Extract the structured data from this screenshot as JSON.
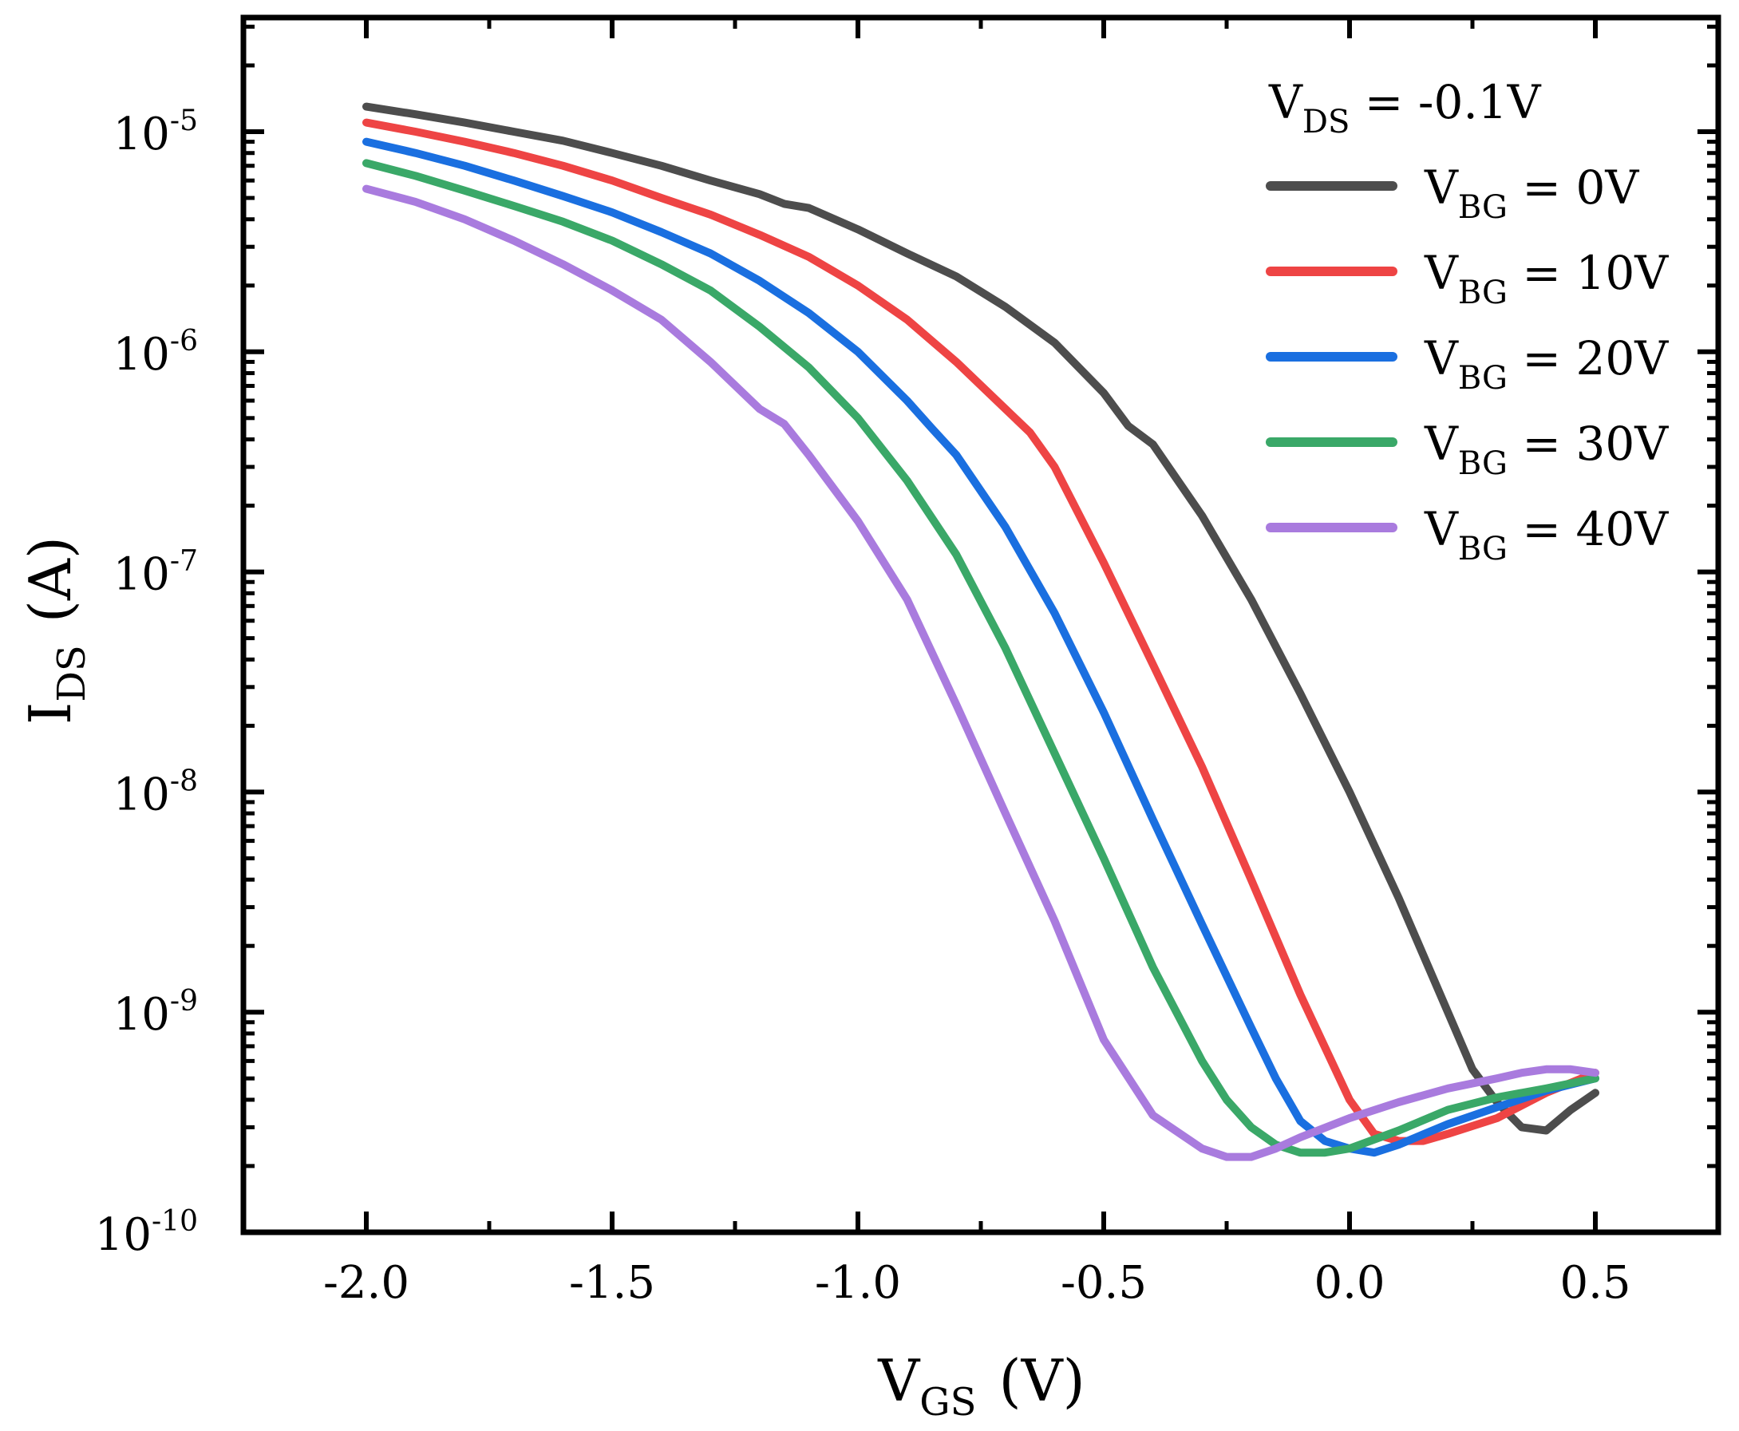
{
  "chart_data": {
    "type": "line",
    "x_scale": "linear",
    "y_scale": "log",
    "xlim": [
      -2.25,
      0.75
    ],
    "ylim": [
      1e-10,
      3.3e-05
    ],
    "x_ticks": [
      -2.0,
      -1.5,
      -1.0,
      -0.5,
      0.0,
      0.5
    ],
    "x_tick_labels": [
      "-2.0",
      "-1.5",
      "-1.0",
      "-0.5",
      "0.0",
      "0.5"
    ],
    "y_ticks": [
      {
        "value": 1e-05,
        "base": "10",
        "exp": "-5"
      },
      {
        "value": 1e-06,
        "base": "10",
        "exp": "-6"
      },
      {
        "value": 1e-07,
        "base": "10",
        "exp": "-7"
      },
      {
        "value": 1e-08,
        "base": "10",
        "exp": "-8"
      },
      {
        "value": 1e-09,
        "base": "10",
        "exp": "-9"
      },
      {
        "value": 1e-10,
        "base": "10",
        "exp": "-10"
      }
    ],
    "xlabel": {
      "main": "V",
      "sub": "GS",
      "unit": "(V)"
    },
    "ylabel": {
      "main": "I",
      "sub": "DS",
      "unit": "(A)"
    },
    "legend": {
      "title": {
        "main": "V",
        "sub": "DS",
        "rest": " = -0.1V"
      },
      "placement": "top-right"
    },
    "series": [
      {
        "name": "V_BG = 0V",
        "label_main": "V",
        "label_sub": "BG",
        "label_rest": " = 0V",
        "color": "#4d4d4d",
        "x": [
          -2.0,
          -1.9,
          -1.8,
          -1.7,
          -1.6,
          -1.5,
          -1.4,
          -1.3,
          -1.2,
          -1.15,
          -1.1,
          -1.0,
          -0.9,
          -0.8,
          -0.7,
          -0.6,
          -0.5,
          -0.45,
          -0.4,
          -0.3,
          -0.2,
          -0.1,
          0.0,
          0.1,
          0.2,
          0.25,
          0.3,
          0.35,
          0.4,
          0.45,
          0.5
        ],
        "y": [
          1.3e-05,
          1.2e-05,
          1.1e-05,
          1e-05,
          9.1e-06,
          8e-06,
          7e-06,
          6e-06,
          5.2e-06,
          4.7e-06,
          4.5e-06,
          3.6e-06,
          2.8e-06,
          2.2e-06,
          1.6e-06,
          1.1e-06,
          6.5e-07,
          4.6e-07,
          3.8e-07,
          1.8e-07,
          7.5e-08,
          2.8e-08,
          1e-08,
          3.3e-09,
          1e-09,
          5.5e-10,
          3.9e-10,
          3e-10,
          2.9e-10,
          3.6e-10,
          4.3e-10
        ]
      },
      {
        "name": "V_BG = 10V",
        "label_main": "V",
        "label_sub": "BG",
        "label_rest": " = 10V",
        "color": "#ee4444",
        "x": [
          -2.0,
          -1.9,
          -1.8,
          -1.7,
          -1.6,
          -1.5,
          -1.4,
          -1.3,
          -1.2,
          -1.1,
          -1.0,
          -0.9,
          -0.8,
          -0.7,
          -0.65,
          -0.6,
          -0.5,
          -0.4,
          -0.3,
          -0.2,
          -0.1,
          0.0,
          0.05,
          0.1,
          0.15,
          0.2,
          0.3,
          0.4,
          0.5
        ],
        "y": [
          1.1e-05,
          1e-05,
          9e-06,
          8e-06,
          7e-06,
          6e-06,
          5e-06,
          4.2e-06,
          3.4e-06,
          2.7e-06,
          2e-06,
          1.4e-06,
          9e-07,
          5.5e-07,
          4.3e-07,
          3e-07,
          1.1e-07,
          3.8e-08,
          1.3e-08,
          4e-09,
          1.2e-09,
          4e-10,
          2.8e-10,
          2.6e-10,
          2.6e-10,
          2.8e-10,
          3.3e-10,
          4.3e-10,
          5.3e-10
        ]
      },
      {
        "name": "V_BG = 20V",
        "label_main": "V",
        "label_sub": "BG",
        "label_rest": " = 20V",
        "color": "#1a6fe0",
        "x": [
          -2.0,
          -1.9,
          -1.8,
          -1.7,
          -1.6,
          -1.5,
          -1.4,
          -1.3,
          -1.2,
          -1.1,
          -1.0,
          -0.9,
          -0.85,
          -0.8,
          -0.7,
          -0.6,
          -0.5,
          -0.4,
          -0.3,
          -0.2,
          -0.15,
          -0.1,
          -0.05,
          0.0,
          0.05,
          0.1,
          0.2,
          0.3,
          0.4,
          0.5
        ],
        "y": [
          9e-06,
          8e-06,
          7e-06,
          6e-06,
          5.1e-06,
          4.3e-06,
          3.5e-06,
          2.8e-06,
          2.1e-06,
          1.5e-06,
          1e-06,
          6e-07,
          4.5e-07,
          3.4e-07,
          1.6e-07,
          6.5e-08,
          2.3e-08,
          7.5e-09,
          2.5e-09,
          8.5e-10,
          5e-10,
          3.2e-10,
          2.6e-10,
          2.4e-10,
          2.3e-10,
          2.5e-10,
          3.1e-10,
          3.7e-10,
          4.4e-10,
          5e-10
        ]
      },
      {
        "name": "V_BG = 30V",
        "label_main": "V",
        "label_sub": "BG",
        "label_rest": " = 30V",
        "color": "#3aa868",
        "x": [
          -2.0,
          -1.9,
          -1.8,
          -1.7,
          -1.6,
          -1.5,
          -1.4,
          -1.3,
          -1.2,
          -1.1,
          -1.0,
          -0.9,
          -0.8,
          -0.7,
          -0.6,
          -0.5,
          -0.4,
          -0.3,
          -0.25,
          -0.2,
          -0.15,
          -0.1,
          -0.05,
          0.0,
          0.1,
          0.2,
          0.3,
          0.4,
          0.5
        ],
        "y": [
          7.2e-06,
          6.3e-06,
          5.4e-06,
          4.6e-06,
          3.9e-06,
          3.2e-06,
          2.5e-06,
          1.9e-06,
          1.3e-06,
          8.5e-07,
          5e-07,
          2.6e-07,
          1.2e-07,
          4.5e-08,
          1.5e-08,
          5e-09,
          1.6e-09,
          6e-10,
          4e-10,
          3e-10,
          2.5e-10,
          2.3e-10,
          2.3e-10,
          2.4e-10,
          2.9e-10,
          3.6e-10,
          4.1e-10,
          4.5e-10,
          5e-10
        ]
      },
      {
        "name": "V_BG = 40V",
        "label_main": "V",
        "label_sub": "BG",
        "label_rest": " = 40V",
        "color": "#a97bde",
        "x": [
          -2.0,
          -1.9,
          -1.8,
          -1.7,
          -1.6,
          -1.5,
          -1.4,
          -1.3,
          -1.2,
          -1.15,
          -1.1,
          -1.0,
          -0.9,
          -0.8,
          -0.7,
          -0.6,
          -0.5,
          -0.4,
          -0.3,
          -0.25,
          -0.2,
          -0.15,
          -0.1,
          0.0,
          0.1,
          0.2,
          0.3,
          0.35,
          0.4,
          0.45,
          0.5
        ],
        "y": [
          5.5e-06,
          4.8e-06,
          4e-06,
          3.2e-06,
          2.5e-06,
          1.9e-06,
          1.4e-06,
          9e-07,
          5.5e-07,
          4.7e-07,
          3.4e-07,
          1.7e-07,
          7.5e-08,
          2.5e-08,
          8e-09,
          2.6e-09,
          7.5e-10,
          3.4e-10,
          2.4e-10,
          2.2e-10,
          2.2e-10,
          2.4e-10,
          2.7e-10,
          3.3e-10,
          3.9e-10,
          4.5e-10,
          5e-10,
          5.3e-10,
          5.5e-10,
          5.5e-10,
          5.3e-10
        ]
      }
    ]
  }
}
